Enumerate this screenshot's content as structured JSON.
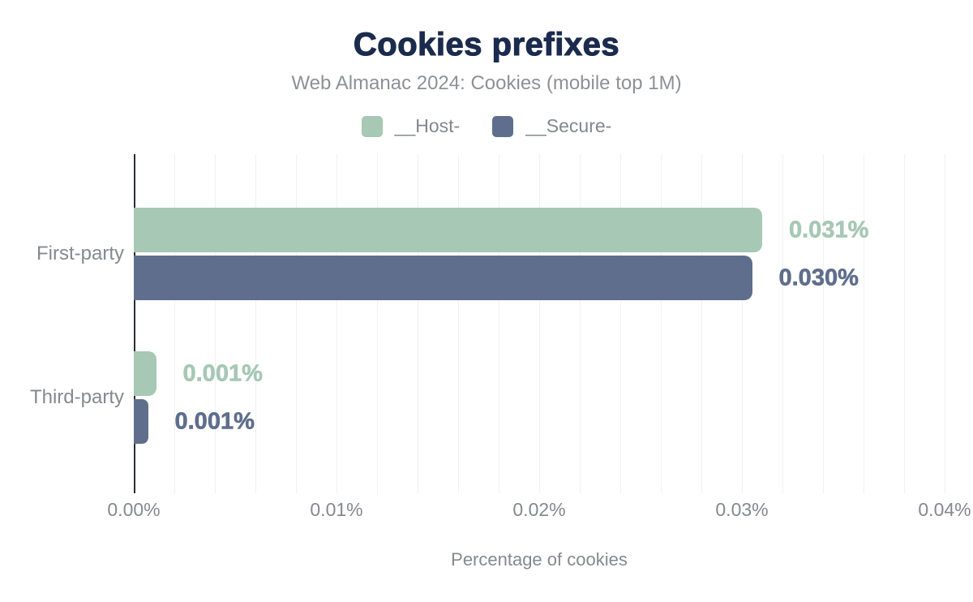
{
  "chart_data": {
    "type": "bar",
    "orientation": "horizontal",
    "title": "Cookies prefixes",
    "subtitle": "Web Almanac 2024: Cookies (mobile top 1M)",
    "categories": [
      "First-party",
      "Third-party"
    ],
    "series": [
      {
        "name": "__Host-",
        "color": "#a6c8b4",
        "values": [
          0.031,
          0.001
        ],
        "value_labels": [
          "0.031%",
          "0.001%"
        ],
        "bar_lengths_pct_est": [
          0.031,
          0.0011
        ]
      },
      {
        "name": "__Secure-",
        "color": "#5f6e8c",
        "values": [
          0.03,
          0.001
        ],
        "value_labels": [
          "0.030%",
          "0.001%"
        ],
        "bar_lengths_pct_est": [
          0.0305,
          0.0007
        ]
      }
    ],
    "xlabel": "Percentage of cookies",
    "xlim": [
      0,
      0.04
    ],
    "xticks": [
      "0.00%",
      "0.01%",
      "0.02%",
      "0.03%",
      "0.04%"
    ],
    "grid": {
      "vertical_minor_step_pct": 0.002,
      "horizontal": false
    },
    "legend_position": "top"
  },
  "colors": {
    "title": "#1b2b4d",
    "subtitle": "#8d9197",
    "axis_text": "#85898f",
    "axis_line": "#2b2e35",
    "gridline": "#eff1f3",
    "background": "#ffffff"
  }
}
